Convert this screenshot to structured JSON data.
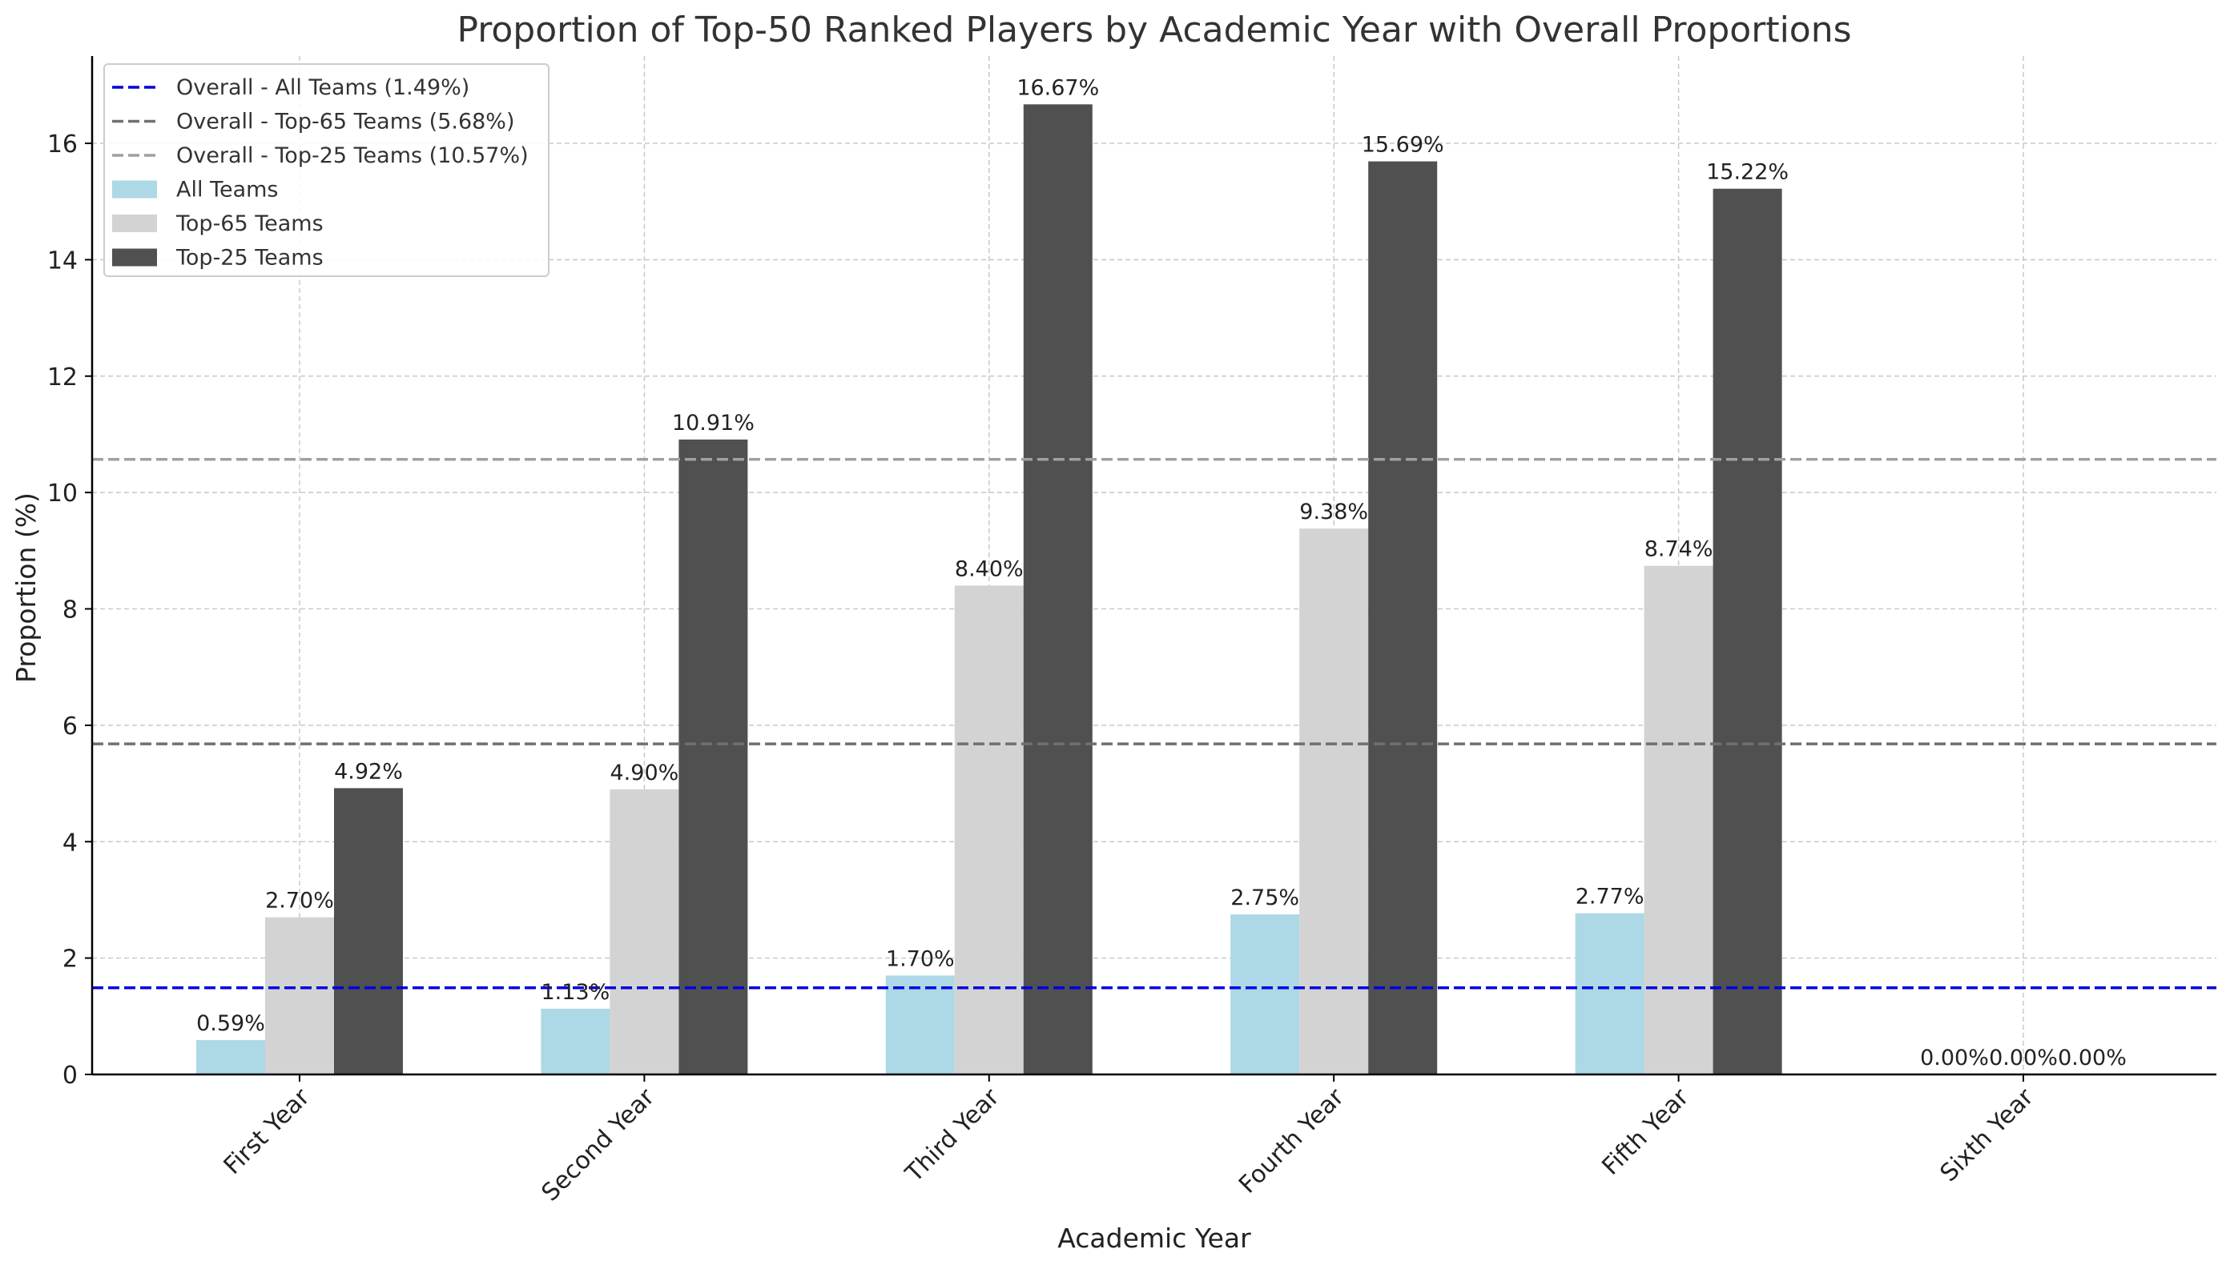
{
  "chart_data": {
    "type": "bar",
    "title": "Proportion of Top-50 Ranked Players by Academic Year with Overall Proportions",
    "xlabel": "Academic Year",
    "ylabel": "Proportion (%)",
    "ylim": [
      0,
      17.5
    ],
    "yticks": [
      0,
      2,
      4,
      6,
      8,
      10,
      12,
      14,
      16
    ],
    "grid": true,
    "legend_position": "top-left",
    "categories": [
      "First Year",
      "Second Year",
      "Third Year",
      "Fourth Year",
      "Fifth Year",
      "Sixth Year"
    ],
    "series": [
      {
        "name": "All Teams",
        "color": "#add8e6",
        "values": [
          0.59,
          1.13,
          1.7,
          2.75,
          2.77,
          0.0
        ],
        "labels": [
          "0.59%",
          "1.13%",
          "1.70%",
          "2.75%",
          "2.77%",
          "0.00%"
        ]
      },
      {
        "name": "Top-65 Teams",
        "color": "#d3d3d3",
        "values": [
          2.7,
          4.9,
          8.4,
          9.38,
          8.74,
          0.0
        ],
        "labels": [
          "2.70%",
          "4.90%",
          "8.40%",
          "9.38%",
          "8.74%",
          "0.00%"
        ]
      },
      {
        "name": "Top-25 Teams",
        "color": "#505050",
        "values": [
          4.92,
          10.91,
          16.67,
          15.69,
          15.22,
          0.0
        ],
        "labels": [
          "4.92%",
          "10.91%",
          "16.67%",
          "15.69%",
          "15.22%",
          "0.00%"
        ]
      }
    ],
    "reference_lines": [
      {
        "name": "Overall - All Teams (1.49%)",
        "value": 1.49,
        "color": "#0000dd"
      },
      {
        "name": "Overall - Top-65 Teams (5.68%)",
        "value": 5.68,
        "color": "#707070"
      },
      {
        "name": "Overall - Top-25 Teams (10.57%)",
        "value": 10.57,
        "color": "#a0a0a0"
      }
    ]
  }
}
